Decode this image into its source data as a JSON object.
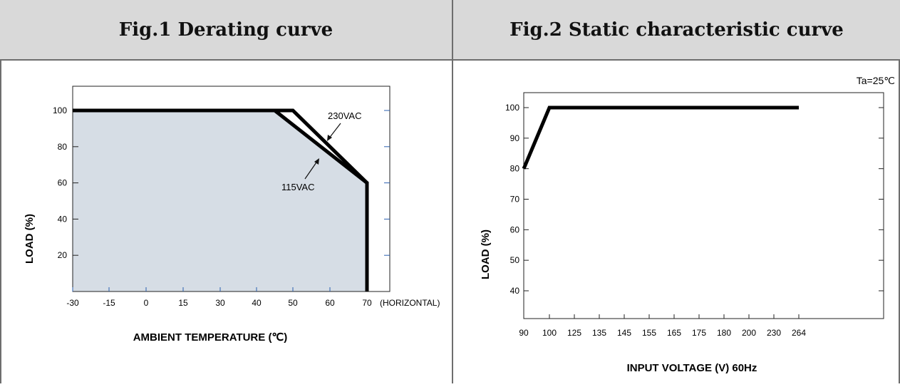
{
  "headers": {
    "fig1": "Fig.1 Derating curve",
    "fig2": "Fig.2 Static characteristic curve"
  },
  "colors": {
    "header_bg": "#d9d9d9",
    "border": "#6e6e6e",
    "fill_area": "#d6dde5",
    "curve": "#000000"
  },
  "chart_data": [
    {
      "type": "line",
      "title": "Fig.1 Derating curve",
      "xlabel": "AMBIENT TEMPERATURE (℃)",
      "ylabel": "LOAD (%)",
      "x_axis_note": "(HORIZONTAL)",
      "xticks": [
        -30,
        -15,
        0,
        15,
        30,
        40,
        50,
        60,
        70
      ],
      "yticks": [
        20,
        40,
        60,
        80,
        100
      ],
      "ylim": [
        0,
        110
      ],
      "series": [
        {
          "name": "230VAC",
          "x": [
            -30,
            50,
            70,
            70
          ],
          "y": [
            100,
            100,
            60,
            0
          ]
        },
        {
          "name": "115VAC",
          "x": [
            -30,
            45,
            70,
            70
          ],
          "y": [
            100,
            100,
            60,
            0
          ]
        }
      ],
      "annotations": [
        "230VAC",
        "115VAC"
      ],
      "shaded_area": true
    },
    {
      "type": "line",
      "title": "Fig.2 Static characteristic curve",
      "xlabel": "INPUT VOLTAGE (V) 60Hz",
      "ylabel": "LOAD (%)",
      "condition": "Ta=25℃",
      "xticks": [
        "90",
        "100",
        "125",
        "135",
        "145",
        "155",
        "165",
        "175",
        "180",
        "200",
        "230",
        "264"
      ],
      "yticks": [
        40,
        50,
        60,
        70,
        80,
        90,
        100
      ],
      "ylim": [
        30,
        105
      ],
      "series": [
        {
          "x": [
            "90",
            "100",
            "264"
          ],
          "y": [
            80,
            100,
            100
          ]
        }
      ]
    }
  ]
}
